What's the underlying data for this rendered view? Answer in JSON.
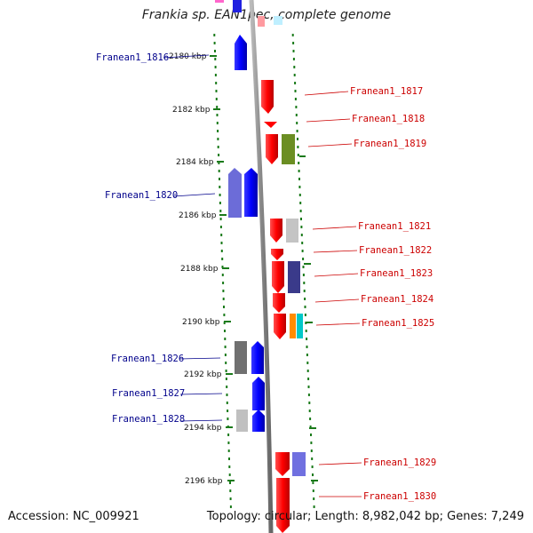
{
  "title": "Frankia sp. EAN1pec, complete genome",
  "footer": {
    "accession": "Accession: NC_009921",
    "genome_info": "Topology: circular; Length: 8,982,042 bp; Genes: 7,249"
  },
  "colors": {
    "forward": "#ff0000",
    "reverse": "#0000ff",
    "scale": "#1a7a1a",
    "backbone": "#888888"
  },
  "kbp_ticks": [
    "2180 kbp",
    "2182 kbp",
    "2184 kbp",
    "2186 kbp",
    "2188 kbp",
    "2190 kbp",
    "2192 kbp",
    "2194 kbp",
    "2196 kbp"
  ],
  "gene_labels_left": [
    "Franean1_1816",
    "Franean1_1820",
    "Franean1_1826",
    "Franean1_1827",
    "Franean1_1828"
  ],
  "gene_labels_right": [
    "Franean1_1817",
    "Franean1_1818",
    "Franean1_1819",
    "Franean1_1821",
    "Franean1_1822",
    "Franean1_1823",
    "Franean1_1824",
    "Franean1_1825",
    "Franean1_1829",
    "Franean1_1830"
  ]
}
